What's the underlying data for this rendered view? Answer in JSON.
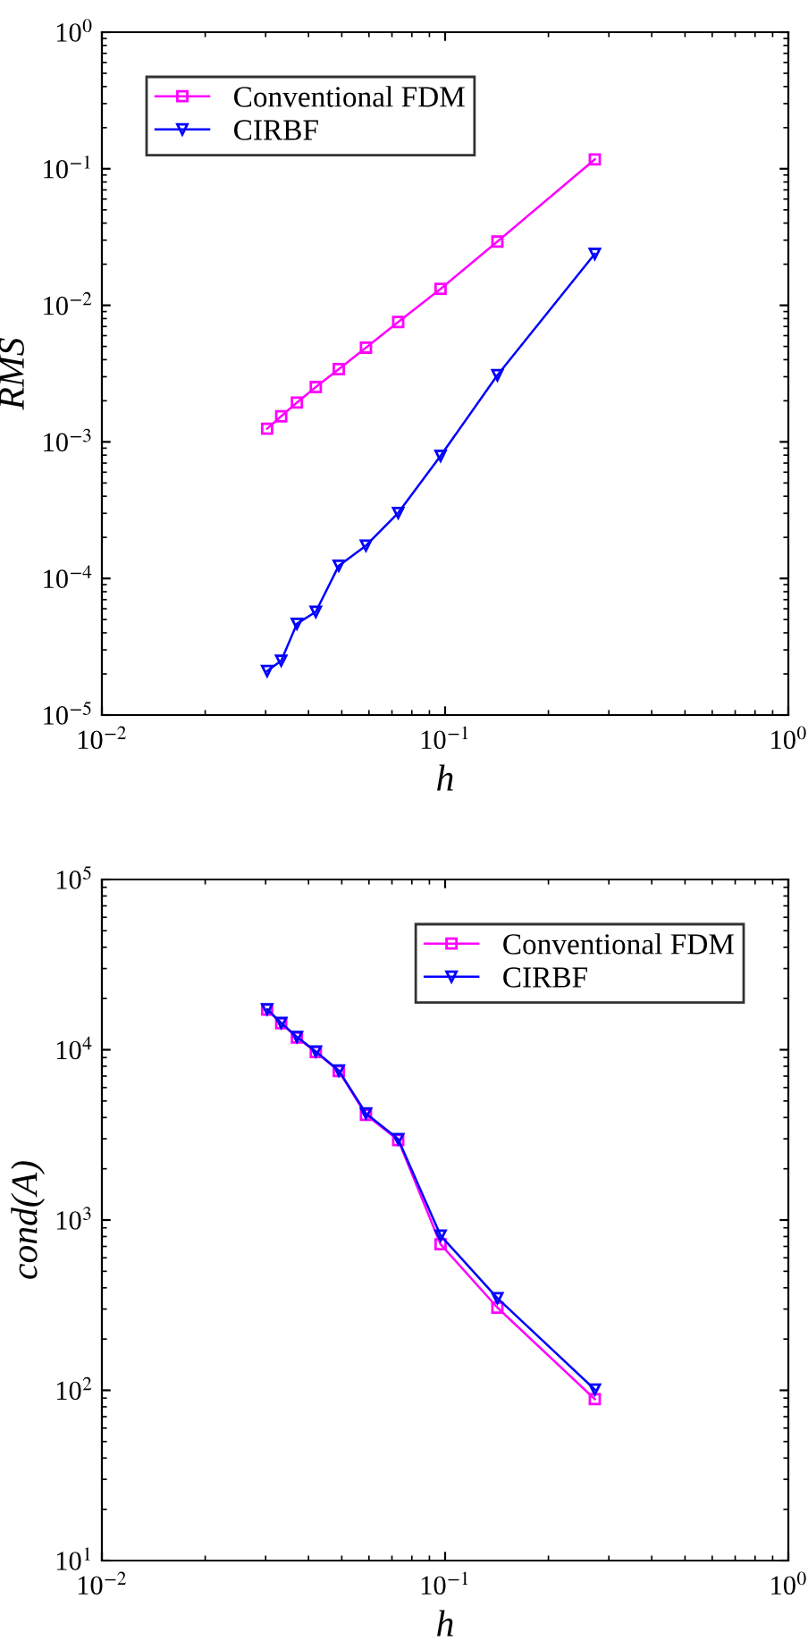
{
  "chart_data": [
    {
      "type": "line",
      "xlabel": "h",
      "ylabel": "RMS",
      "log": "xy",
      "legend": "top left",
      "grid": false,
      "xlim": [
        0.01,
        1
      ],
      "ylim": [
        1e-05,
        1
      ],
      "xticks": [
        {
          "value": 0.01,
          "label": "10$^{−2}$"
        },
        {
          "value": 0.1,
          "label": "10$^{−1}$"
        },
        {
          "value": 1,
          "label": "10$^{0}$"
        }
      ],
      "yticks": [
        {
          "value": 1e-05,
          "label": "10$^{−5}$"
        },
        {
          "value": 0.0001,
          "label": "10$^{−4}$"
        },
        {
          "value": 0.001,
          "label": "10$^{−3}$"
        },
        {
          "value": 0.01,
          "label": "10$^{−2}$"
        },
        {
          "value": 0.1,
          "label": "10$^{−1}$"
        },
        {
          "value": 1,
          "label": "10$^{0}$"
        }
      ],
      "x": [
        0.0303,
        0.0333,
        0.037,
        0.042,
        0.049,
        0.0588,
        0.073,
        0.097,
        0.142,
        0.273
      ],
      "series": [
        {
          "name": "Conventional FDM",
          "color": "#ff00ff",
          "marker": "square",
          "values": [
            0.00125,
            0.00154,
            0.00194,
            0.00252,
            0.00341,
            0.0049,
            0.00755,
            0.0132,
            0.0293,
            0.117
          ]
        },
        {
          "name": "CIRBF",
          "color": "#0000ff",
          "marker": "triangle",
          "values": [
            2.1e-05,
            2.5e-05,
            4.66e-05,
            5.7e-05,
            0.000124,
            0.000174,
            0.000302,
            0.00079,
            0.00308,
            0.0238
          ]
        }
      ]
    },
    {
      "type": "line",
      "xlabel": "h",
      "ylabel": "cond(A)",
      "log": "xy",
      "legend": "top right",
      "grid": false,
      "xlim": [
        0.01,
        1
      ],
      "ylim": [
        10,
        100000
      ],
      "xticks": [
        {
          "value": 0.01,
          "label": "10$^{−2}$"
        },
        {
          "value": 0.1,
          "label": "10$^{−1}$"
        },
        {
          "value": 1,
          "label": "10$^{0}$"
        }
      ],
      "yticks": [
        {
          "value": 10,
          "label": "10$^{1}$"
        },
        {
          "value": 100,
          "label": "10$^{2}$"
        },
        {
          "value": 1000,
          "label": "10$^{3}$"
        },
        {
          "value": 10000,
          "label": "10$^{4}$"
        },
        {
          "value": 100000,
          "label": "10$^{5}$"
        }
      ],
      "x": [
        0.0303,
        0.0333,
        0.037,
        0.042,
        0.049,
        0.0588,
        0.073,
        0.097,
        0.142,
        0.273
      ],
      "series": [
        {
          "name": "Conventional FDM",
          "color": "#ff00ff",
          "marker": "square",
          "values": [
            17200,
            14300,
            11800,
            9700,
            7500,
            4150,
            2950,
            720,
            306,
            88.7
          ]
        },
        {
          "name": "CIRBF",
          "color": "#0000ff",
          "marker": "triangle",
          "values": [
            17300,
            14400,
            11900,
            9770,
            7550,
            4230,
            2990,
            811,
            348,
            101
          ]
        }
      ]
    }
  ]
}
